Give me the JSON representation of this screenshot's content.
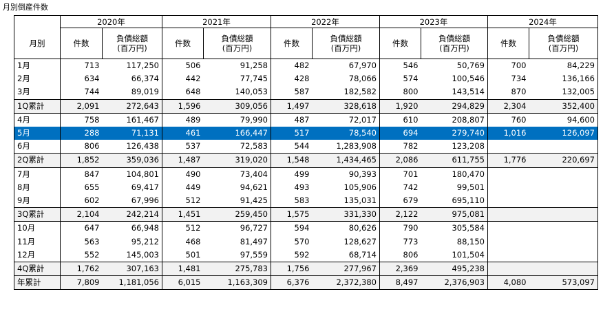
{
  "title": "月別倒産件数",
  "years": [
    "2020年",
    "2021年",
    "2022年",
    "2023年",
    "2024年"
  ],
  "header": {
    "month": "月別",
    "count": "件数",
    "debt_l1": "負債総額",
    "debt_l2": "(百万円)"
  },
  "rows": [
    {
      "label": "1月",
      "type": "month",
      "v": [
        [
          "713",
          "117,250"
        ],
        [
          "506",
          "91,258"
        ],
        [
          "482",
          "67,970"
        ],
        [
          "546",
          "50,769"
        ],
        [
          "700",
          "84,229"
        ]
      ]
    },
    {
      "label": "2月",
      "type": "month",
      "v": [
        [
          "634",
          "66,374"
        ],
        [
          "442",
          "77,745"
        ],
        [
          "428",
          "78,066"
        ],
        [
          "574",
          "100,546"
        ],
        [
          "734",
          "136,166"
        ]
      ]
    },
    {
      "label": "3月",
      "type": "month",
      "v": [
        [
          "744",
          "89,019"
        ],
        [
          "648",
          "140,053"
        ],
        [
          "587",
          "182,582"
        ],
        [
          "800",
          "143,514"
        ],
        [
          "870",
          "132,005"
        ]
      ]
    },
    {
      "label": "1Q累計",
      "type": "sub",
      "v": [
        [
          "2,091",
          "272,643"
        ],
        [
          "1,596",
          "309,056"
        ],
        [
          "1,497",
          "328,618"
        ],
        [
          "1,920",
          "294,829"
        ],
        [
          "2,304",
          "352,400"
        ]
      ]
    },
    {
      "label": "4月",
      "type": "month",
      "v": [
        [
          "758",
          "161,467"
        ],
        [
          "489",
          "79,990"
        ],
        [
          "487",
          "72,017"
        ],
        [
          "610",
          "208,807"
        ],
        [
          "760",
          "94,600"
        ]
      ]
    },
    {
      "label": "5月",
      "type": "hl",
      "v": [
        [
          "288",
          "71,131"
        ],
        [
          "461",
          "166,447"
        ],
        [
          "517",
          "78,540"
        ],
        [
          "694",
          "279,740"
        ],
        [
          "1,016",
          "126,097"
        ]
      ]
    },
    {
      "label": "6月",
      "type": "month",
      "v": [
        [
          "806",
          "126,438"
        ],
        [
          "537",
          "72,583"
        ],
        [
          "544",
          "1,283,908"
        ],
        [
          "782",
          "123,208"
        ],
        [
          "",
          ""
        ]
      ]
    },
    {
      "label": "2Q累計",
      "type": "sub",
      "v": [
        [
          "1,852",
          "359,036"
        ],
        [
          "1,487",
          "319,020"
        ],
        [
          "1,548",
          "1,434,465"
        ],
        [
          "2,086",
          "611,755"
        ],
        [
          "1,776",
          "220,697"
        ]
      ]
    },
    {
      "label": "7月",
      "type": "month",
      "v": [
        [
          "847",
          "104,801"
        ],
        [
          "490",
          "73,404"
        ],
        [
          "499",
          "90,393"
        ],
        [
          "701",
          "180,470"
        ],
        [
          "",
          ""
        ]
      ]
    },
    {
      "label": "8月",
      "type": "month",
      "v": [
        [
          "655",
          "69,417"
        ],
        [
          "449",
          "94,621"
        ],
        [
          "493",
          "105,906"
        ],
        [
          "742",
          "99,501"
        ],
        [
          "",
          ""
        ]
      ]
    },
    {
      "label": "9月",
      "type": "month",
      "v": [
        [
          "602",
          "67,996"
        ],
        [
          "512",
          "91,425"
        ],
        [
          "583",
          "135,031"
        ],
        [
          "679",
          "695,110"
        ],
        [
          "",
          ""
        ]
      ]
    },
    {
      "label": "3Q累計",
      "type": "sub",
      "v": [
        [
          "2,104",
          "242,214"
        ],
        [
          "1,451",
          "259,450"
        ],
        [
          "1,575",
          "331,330"
        ],
        [
          "2,122",
          "975,081"
        ],
        [
          "",
          ""
        ]
      ]
    },
    {
      "label": "10月",
      "type": "month",
      "v": [
        [
          "647",
          "66,948"
        ],
        [
          "512",
          "96,727"
        ],
        [
          "594",
          "80,626"
        ],
        [
          "790",
          "305,584"
        ],
        [
          "",
          ""
        ]
      ]
    },
    {
      "label": "11月",
      "type": "month",
      "v": [
        [
          "563",
          "95,212"
        ],
        [
          "468",
          "81,497"
        ],
        [
          "570",
          "128,627"
        ],
        [
          "773",
          "88,150"
        ],
        [
          "",
          ""
        ]
      ]
    },
    {
      "label": "12月",
      "type": "month",
      "v": [
        [
          "552",
          "145,003"
        ],
        [
          "501",
          "97,559"
        ],
        [
          "592",
          "68,714"
        ],
        [
          "806",
          "101,504"
        ],
        [
          "",
          ""
        ]
      ]
    },
    {
      "label": "4Q累計",
      "type": "sub",
      "v": [
        [
          "1,762",
          "307,163"
        ],
        [
          "1,481",
          "275,783"
        ],
        [
          "1,756",
          "277,967"
        ],
        [
          "2,369",
          "495,238"
        ],
        [
          "",
          ""
        ]
      ]
    },
    {
      "label": "年累計",
      "type": "total",
      "v": [
        [
          "7,809",
          "1,181,056"
        ],
        [
          "6,015",
          "1,163,309"
        ],
        [
          "6,376",
          "2,372,380"
        ],
        [
          "8,497",
          "2,376,903"
        ],
        [
          "4,080",
          "573,097"
        ]
      ]
    }
  ]
}
